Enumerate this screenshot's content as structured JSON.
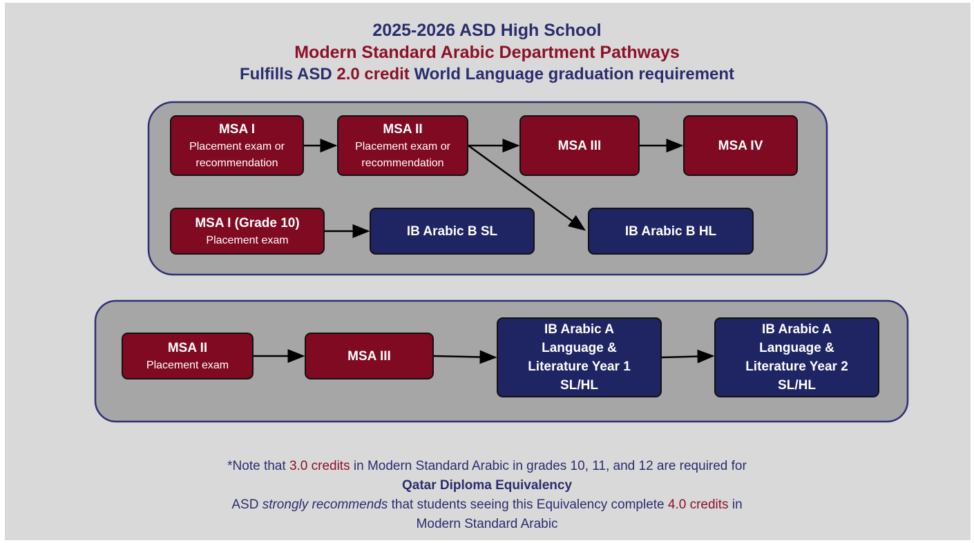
{
  "header": {
    "title": "2025-2026 ASD High School",
    "subtitle": "Modern Standard Arabic Department Pathways",
    "requirement": [
      "Fulfills ASD",
      "2.0 credit",
      "World Language graduation requirement"
    ]
  },
  "nodes": [
    {
      "label": "MSA I",
      "sublabel": "Placement exam or recommendation"
    },
    {
      "label": "MSA II",
      "sublabel": "Placement exam or recommendation"
    },
    {
      "label": "MSA III"
    },
    {
      "label": "MSA IV"
    },
    {
      "label": "MSA I (Grade 10)",
      "sublabel": "Placement exam"
    },
    {
      "label": "IB Arabic B SL"
    },
    {
      "label": "IB Arabic B HL"
    },
    {
      "label": "MSA II",
      "sublabel": "Placement exam"
    },
    {
      "label": "MSA III"
    },
    {
      "label": "IB Arabic A Language & Literature Year 1 SL/HL"
    },
    {
      "label": "IB Arabic A Language & Literature Year 2 SL/HL"
    }
  ],
  "note": {
    "line1": [
      "*Note that",
      "3.0 credits",
      "in Modern Standard Arabic in grades 10, 11, and 12 are required for"
    ],
    "line2": "Qatar Diploma Equivalency",
    "line3": [
      "ASD",
      "strongly recommends",
      "that students seeing this Equivalency complete",
      "4.0 credits",
      "in"
    ],
    "line4": "Modern Standard Arabic"
  }
}
